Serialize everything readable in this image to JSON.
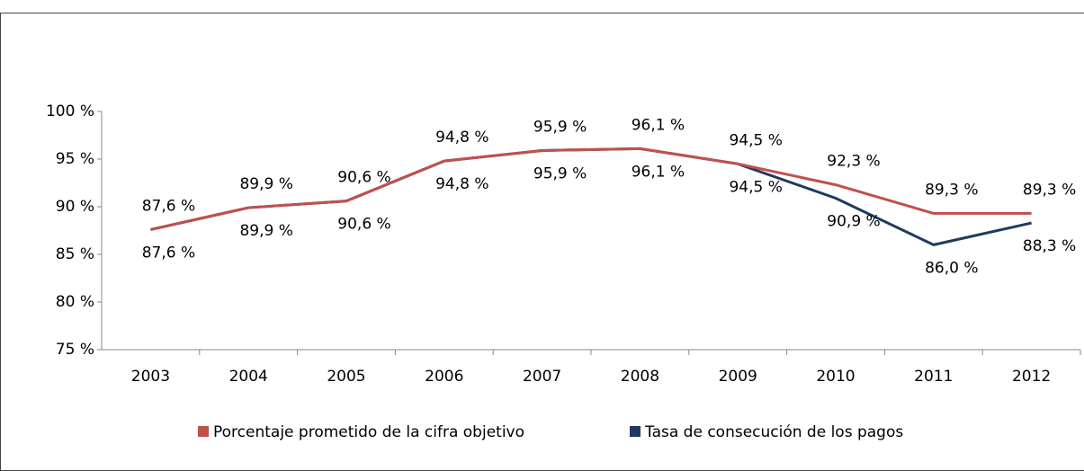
{
  "chart_data": {
    "type": "line",
    "categories": [
      "2003",
      "2004",
      "2005",
      "2006",
      "2007",
      "2008",
      "2009",
      "2010",
      "2011",
      "2012"
    ],
    "series": [
      {
        "name": "Porcentaje prometido de la cifra objetivo",
        "color": "#c0504d",
        "values": [
          87.6,
          89.9,
          90.6,
          94.8,
          95.9,
          96.1,
          94.5,
          92.3,
          89.3,
          89.3
        ],
        "value_labels": [
          "87,6 %",
          "89,9 %",
          "90,6 %",
          "94,8 %",
          "95,9 %",
          "96,1 %",
          "94,5 %",
          "92,3 %",
          "89,3 %",
          "89,3 %"
        ]
      },
      {
        "name": "Tasa de consecución de los pagos",
        "color": "#1f3a5f",
        "values": [
          87.6,
          89.9,
          90.6,
          94.8,
          95.9,
          96.1,
          94.5,
          90.9,
          86.0,
          88.3
        ],
        "value_labels": [
          "87,6 %",
          "89,9 %",
          "90,6 %",
          "94,8 %",
          "95,9 %",
          "96,1 %",
          "94,5 %",
          "90,9 %",
          "86,0 %",
          "88,3 %"
        ]
      }
    ],
    "ylim": [
      75,
      100
    ],
    "yticks": [
      {
        "value": 75,
        "label": "75 %"
      },
      {
        "value": 80,
        "label": "80 %"
      },
      {
        "value": 85,
        "label": "85 %"
      },
      {
        "value": 90,
        "label": "90 %"
      },
      {
        "value": 95,
        "label": "95 %"
      },
      {
        "value": 100,
        "label": "100 %"
      }
    ],
    "grid": false,
    "legend": "bottom"
  }
}
